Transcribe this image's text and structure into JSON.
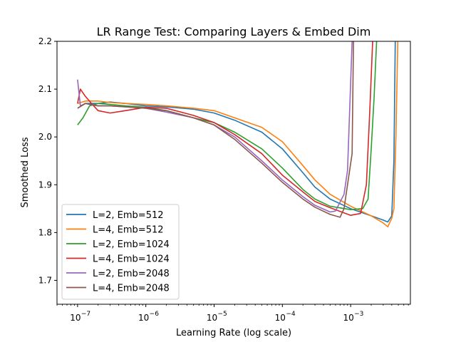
{
  "chart_data": {
    "type": "line",
    "title": "LR Range Test: Comparing Layers & Embed Dim",
    "xlabel": "Learning Rate (log scale)",
    "ylabel": "Smoothed Loss",
    "xscale": "log",
    "xlim": [
      5e-08,
      0.0075
    ],
    "ylim": [
      1.65,
      2.2
    ],
    "xticks": [
      1e-07,
      1e-06,
      1e-05,
      0.0001,
      0.001
    ],
    "xtick_labels": [
      "10",
      "10",
      "10",
      "10",
      "10"
    ],
    "xtick_exponents": [
      "−7",
      "−6",
      "−5",
      "−4",
      "−3"
    ],
    "yticks": [
      1.7,
      1.8,
      1.9,
      2.0,
      2.1,
      2.2
    ],
    "ytick_labels": [
      "1.7",
      "1.8",
      "1.9",
      "2.0",
      "2.1",
      "2.2"
    ],
    "grid": false,
    "legend_position": "lower-left",
    "series": [
      {
        "name": "L=2, Emb=512",
        "color": "#1f77b4",
        "points": [
          [
            1e-07,
            2.06
          ],
          [
            1.3e-07,
            2.07
          ],
          [
            2e-07,
            2.07
          ],
          [
            3e-07,
            2.073
          ],
          [
            5e-07,
            2.07
          ],
          [
            1e-06,
            2.065
          ],
          [
            2e-06,
            2.063
          ],
          [
            5e-06,
            2.058
          ],
          [
            1e-05,
            2.05
          ],
          [
            2e-05,
            2.035
          ],
          [
            5e-05,
            2.01
          ],
          [
            0.0001,
            1.975
          ],
          [
            0.0002,
            1.925
          ],
          [
            0.0003,
            1.895
          ],
          [
            0.0005,
            1.87
          ],
          [
            0.001,
            1.85
          ],
          [
            0.002,
            1.835
          ],
          [
            0.003,
            1.826
          ],
          [
            0.0035,
            1.822
          ],
          [
            0.004,
            1.835
          ],
          [
            0.0043,
            1.95
          ],
          [
            0.0045,
            2.2
          ]
        ]
      },
      {
        "name": "L=4, Emb=512",
        "color": "#ff7f0e",
        "points": [
          [
            1e-07,
            2.07
          ],
          [
            1.3e-07,
            2.075
          ],
          [
            2e-07,
            2.075
          ],
          [
            3e-07,
            2.072
          ],
          [
            5e-07,
            2.07
          ],
          [
            1e-06,
            2.068
          ],
          [
            2e-06,
            2.065
          ],
          [
            5e-06,
            2.06
          ],
          [
            1e-05,
            2.055
          ],
          [
            2e-05,
            2.04
          ],
          [
            5e-05,
            2.02
          ],
          [
            0.0001,
            1.99
          ],
          [
            0.0002,
            1.94
          ],
          [
            0.0003,
            1.91
          ],
          [
            0.0005,
            1.88
          ],
          [
            0.001,
            1.855
          ],
          [
            0.002,
            1.835
          ],
          [
            0.003,
            1.82
          ],
          [
            0.0035,
            1.812
          ],
          [
            0.004,
            1.83
          ],
          [
            0.0043,
            1.85
          ],
          [
            0.0046,
            2.0
          ],
          [
            0.0049,
            2.2
          ]
        ]
      },
      {
        "name": "L=2, Emb=1024",
        "color": "#2ca02c",
        "points": [
          [
            1e-07,
            2.025
          ],
          [
            1.2e-07,
            2.04
          ],
          [
            1.5e-07,
            2.065
          ],
          [
            2e-07,
            2.07
          ],
          [
            3e-07,
            2.068
          ],
          [
            5e-07,
            2.065
          ],
          [
            1e-06,
            2.062
          ],
          [
            2e-06,
            2.055
          ],
          [
            5e-06,
            2.04
          ],
          [
            1e-05,
            2.03
          ],
          [
            2e-05,
            2.01
          ],
          [
            5e-05,
            1.975
          ],
          [
            0.0001,
            1.935
          ],
          [
            0.0002,
            1.89
          ],
          [
            0.0003,
            1.87
          ],
          [
            0.0005,
            1.855
          ],
          [
            0.001,
            1.848
          ],
          [
            0.0015,
            1.85
          ],
          [
            0.0018,
            1.87
          ],
          [
            0.002,
            1.975
          ],
          [
            0.0022,
            2.08
          ],
          [
            0.0024,
            2.2
          ]
        ]
      },
      {
        "name": "L=4, Emb=1024",
        "color": "#d62728",
        "points": [
          [
            1e-07,
            2.07
          ],
          [
            1.1e-07,
            2.1
          ],
          [
            1.3e-07,
            2.085
          ],
          [
            1.6e-07,
            2.07
          ],
          [
            2e-07,
            2.055
          ],
          [
            3e-07,
            2.05
          ],
          [
            5e-07,
            2.055
          ],
          [
            1e-06,
            2.062
          ],
          [
            2e-06,
            2.06
          ],
          [
            5e-06,
            2.045
          ],
          [
            1e-05,
            2.03
          ],
          [
            2e-05,
            2.005
          ],
          [
            5e-05,
            1.965
          ],
          [
            0.0001,
            1.92
          ],
          [
            0.0002,
            1.885
          ],
          [
            0.0003,
            1.865
          ],
          [
            0.0005,
            1.852
          ],
          [
            0.001,
            1.836
          ],
          [
            0.0014,
            1.84
          ],
          [
            0.0017,
            1.9
          ],
          [
            0.0019,
            2.05
          ],
          [
            0.0021,
            2.2
          ]
        ]
      },
      {
        "name": "L=2, Emb=2048",
        "color": "#9467bd",
        "points": [
          [
            1e-07,
            2.12
          ],
          [
            1.1e-07,
            2.065
          ],
          [
            1.3e-07,
            2.07
          ],
          [
            2e-07,
            2.065
          ],
          [
            3e-07,
            2.065
          ],
          [
            5e-07,
            2.063
          ],
          [
            1e-06,
            2.06
          ],
          [
            2e-06,
            2.052
          ],
          [
            5e-06,
            2.04
          ],
          [
            1e-05,
            2.025
          ],
          [
            2e-05,
            2.0
          ],
          [
            5e-05,
            1.95
          ],
          [
            0.0001,
            1.91
          ],
          [
            0.0002,
            1.875
          ],
          [
            0.0003,
            1.857
          ],
          [
            0.0005,
            1.843
          ],
          [
            0.0006,
            1.845
          ],
          [
            0.0008,
            1.88
          ],
          [
            0.0009,
            1.93
          ],
          [
            0.00105,
            2.2
          ]
        ]
      },
      {
        "name": "L=4, Emb=2048",
        "color": "#8c564b",
        "points": [
          [
            1e-07,
            2.06
          ],
          [
            1.3e-07,
            2.07
          ],
          [
            2e-07,
            2.065
          ],
          [
            3e-07,
            2.065
          ],
          [
            5e-07,
            2.063
          ],
          [
            1e-06,
            2.06
          ],
          [
            2e-06,
            2.055
          ],
          [
            5e-06,
            2.04
          ],
          [
            1e-05,
            2.025
          ],
          [
            2e-05,
            1.995
          ],
          [
            5e-05,
            1.945
          ],
          [
            0.0001,
            1.905
          ],
          [
            0.0002,
            1.87
          ],
          [
            0.0003,
            1.853
          ],
          [
            0.0005,
            1.838
          ],
          [
            0.0007,
            1.832
          ],
          [
            0.0008,
            1.85
          ],
          [
            0.0009,
            1.9
          ],
          [
            0.00105,
            1.965
          ],
          [
            0.0011,
            2.2
          ]
        ]
      }
    ]
  }
}
